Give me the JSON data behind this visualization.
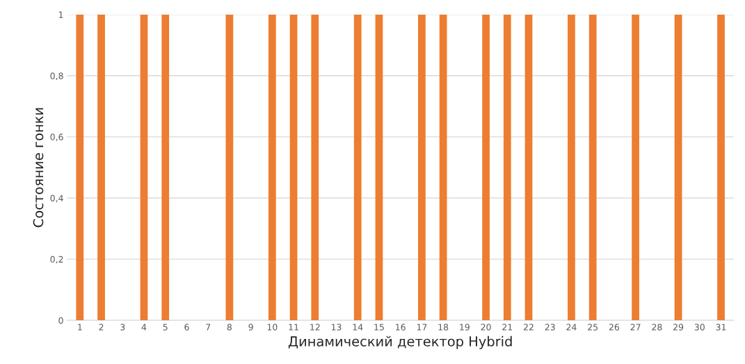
{
  "chart_data": {
    "type": "bar",
    "xlabel": "Динамический детектор Hybrid",
    "ylabel": "Состояние гонки",
    "categories": [
      "1",
      "2",
      "3",
      "4",
      "5",
      "6",
      "7",
      "8",
      "9",
      "10",
      "11",
      "12",
      "13",
      "14",
      "15",
      "16",
      "17",
      "18",
      "19",
      "20",
      "21",
      "22",
      "23",
      "24",
      "25",
      "26",
      "27",
      "28",
      "29",
      "30",
      "31"
    ],
    "values": [
      1,
      1,
      0,
      1,
      1,
      0,
      0,
      1,
      0,
      1,
      1,
      1,
      0,
      1,
      1,
      0,
      1,
      1,
      0,
      1,
      1,
      1,
      0,
      1,
      1,
      0,
      1,
      0,
      1,
      0,
      1
    ],
    "color": "#ed7d31",
    "ylim": [
      0,
      1
    ],
    "yticks": [
      {
        "value": 0,
        "label": "0"
      },
      {
        "value": 0.2,
        "label": "0,2"
      },
      {
        "value": 0.4,
        "label": "0,4"
      },
      {
        "value": 0.6,
        "label": "0,6"
      },
      {
        "value": 0.8,
        "label": "0,8"
      },
      {
        "value": 1,
        "label": "1"
      }
    ],
    "grid": "y"
  }
}
